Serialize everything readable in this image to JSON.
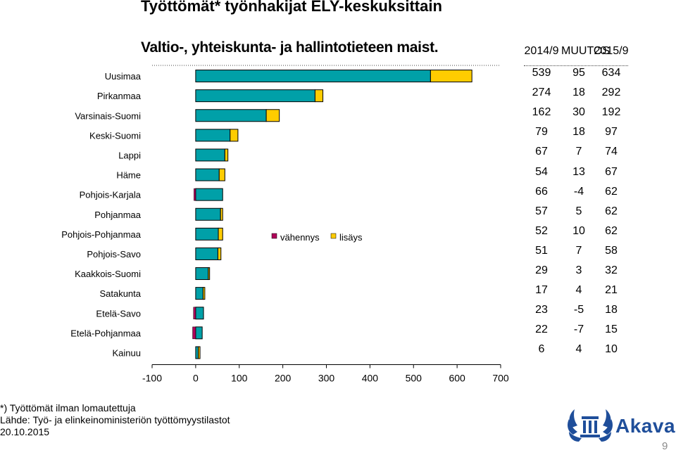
{
  "title": "Työttömät* työnhakijat ELY-keskuksittain",
  "subtitle": "Valtio-, yhteiskunta- ja hallintotieteen maist.",
  "table": {
    "headers": [
      "2014/9",
      "MUUTOS",
      "2015/9"
    ],
    "rows": [
      [
        "539",
        "95",
        "634"
      ],
      [
        "274",
        "18",
        "292"
      ],
      [
        "162",
        "30",
        "192"
      ],
      [
        "79",
        "18",
        "97"
      ],
      [
        "67",
        "7",
        "74"
      ],
      [
        "54",
        "13",
        "67"
      ],
      [
        "66",
        "-4",
        "62"
      ],
      [
        "57",
        "5",
        "62"
      ],
      [
        "52",
        "10",
        "62"
      ],
      [
        "51",
        "7",
        "58"
      ],
      [
        "29",
        "3",
        "32"
      ],
      [
        "17",
        "4",
        "21"
      ],
      [
        "23",
        "-5",
        "18"
      ],
      [
        "22",
        "-7",
        "15"
      ],
      [
        "6",
        "4",
        "10"
      ]
    ]
  },
  "footnotes": {
    "line1": "*) Työttömät ilman lomautettuja",
    "line2": "Lähde: Työ- ja elinkeinoministeriön työttömyystilastot",
    "line3": "20.10.2015"
  },
  "logo": {
    "text": "Akava",
    "color": "#1f4e9a"
  },
  "page_number": "9",
  "colors": {
    "base": "#00A0A8",
    "increase": "#FFCC00",
    "decrease": "#B0005A"
  },
  "chart_data": {
    "type": "bar",
    "orientation": "horizontal",
    "stacked": true,
    "categories": [
      "Uusimaa",
      "Pirkanmaa",
      "Varsinais-Suomi",
      "Keski-Suomi",
      "Lappi",
      "Häme",
      "Pohjois-Karjala",
      "Pohjanmaa",
      "Pohjois-Pohjanmaa",
      "Pohjois-Savo",
      "Kaakkois-Suomi",
      "Satakunta",
      "Etelä-Savo",
      "Etelä-Pohjanmaa",
      "Kainuu"
    ],
    "series": [
      {
        "name": "",
        "values": [
          539,
          274,
          162,
          79,
          67,
          54,
          62,
          57,
          52,
          51,
          29,
          17,
          18,
          15,
          6
        ]
      },
      {
        "name": "vähennys",
        "values": [
          0,
          0,
          0,
          0,
          0,
          0,
          -4,
          0,
          0,
          0,
          0,
          0,
          -5,
          -7,
          0
        ]
      },
      {
        "name": "lisäys",
        "values": [
          95,
          18,
          30,
          18,
          7,
          13,
          0,
          5,
          10,
          7,
          3,
          4,
          0,
          0,
          4
        ]
      }
    ],
    "xlim": [
      -100,
      700
    ],
    "xticks": [
      "-100",
      "0",
      "100",
      "200",
      "300",
      "400",
      "500",
      "600",
      "700"
    ],
    "legend": "center"
  }
}
